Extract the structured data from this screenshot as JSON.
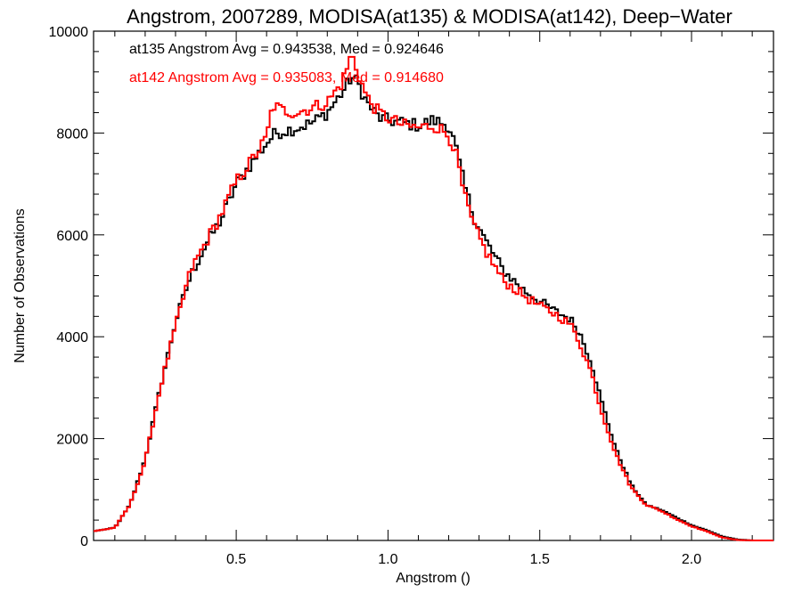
{
  "chart_data": {
    "type": "histogram",
    "title": "Angstrom, 2007289, MODISA(at135) & MODISA(at142), Deep−Water",
    "xlabel": "Angstrom ()",
    "ylabel": "Number of Observations",
    "xlim": [
      0.03,
      2.27
    ],
    "ylim": [
      0,
      10000
    ],
    "x_ticks": [
      0.5,
      1.0,
      1.5,
      2.0
    ],
    "x_tick_labels": [
      "0.5",
      "1.0",
      "1.5",
      "2.0"
    ],
    "y_ticks": [
      0,
      2000,
      4000,
      6000,
      8000,
      10000
    ],
    "y_tick_labels": [
      "0",
      "2000",
      "4000",
      "6000",
      "8000",
      "10000"
    ],
    "grid": false,
    "annotations": [
      {
        "text": "at135 Angstrom Avg = 0.943538, Med = 0.924646",
        "color": "#000000"
      },
      {
        "text": "at142 Angstrom Avg = 0.935083, Med = 0.914680",
        "color": "#ff0000"
      }
    ],
    "series": [
      {
        "color": "#000000",
        "points": [
          [
            0.03,
            180
          ],
          [
            0.1,
            250
          ],
          [
            0.15,
            700
          ],
          [
            0.2,
            1600
          ],
          [
            0.25,
            3000
          ],
          [
            0.3,
            4300
          ],
          [
            0.35,
            5200
          ],
          [
            0.4,
            5800
          ],
          [
            0.45,
            6300
          ],
          [
            0.5,
            7000
          ],
          [
            0.55,
            7400
          ],
          [
            0.6,
            7800
          ],
          [
            0.63,
            8000
          ],
          [
            0.7,
            8100
          ],
          [
            0.75,
            8200
          ],
          [
            0.8,
            8400
          ],
          [
            0.85,
            8800
          ],
          [
            0.88,
            9100
          ],
          [
            0.9,
            9000
          ],
          [
            0.93,
            8600
          ],
          [
            0.97,
            8300
          ],
          [
            1.0,
            8250
          ],
          [
            1.05,
            8200
          ],
          [
            1.1,
            8150
          ],
          [
            1.15,
            8250
          ],
          [
            1.2,
            8150
          ],
          [
            1.22,
            7800
          ],
          [
            1.25,
            7000
          ],
          [
            1.28,
            6400
          ],
          [
            1.32,
            5900
          ],
          [
            1.38,
            5300
          ],
          [
            1.45,
            4900
          ],
          [
            1.5,
            4700
          ],
          [
            1.55,
            4500
          ],
          [
            1.6,
            4350
          ],
          [
            1.63,
            4100
          ],
          [
            1.67,
            3500
          ],
          [
            1.7,
            2800
          ],
          [
            1.75,
            1800
          ],
          [
            1.8,
            1100
          ],
          [
            1.85,
            700
          ],
          [
            1.9,
            600
          ],
          [
            1.95,
            450
          ],
          [
            2.0,
            300
          ],
          [
            2.05,
            200
          ],
          [
            2.1,
            80
          ],
          [
            2.15,
            20
          ],
          [
            2.2,
            0
          ],
          [
            2.27,
            0
          ]
        ]
      },
      {
        "color": "#ff0000",
        "points": [
          [
            0.03,
            180
          ],
          [
            0.1,
            250
          ],
          [
            0.15,
            700
          ],
          [
            0.2,
            1550
          ],
          [
            0.25,
            3000
          ],
          [
            0.3,
            4200
          ],
          [
            0.35,
            5300
          ],
          [
            0.4,
            5850
          ],
          [
            0.45,
            6400
          ],
          [
            0.5,
            7050
          ],
          [
            0.55,
            7450
          ],
          [
            0.6,
            7900
          ],
          [
            0.62,
            8550
          ],
          [
            0.65,
            8450
          ],
          [
            0.7,
            8400
          ],
          [
            0.75,
            8500
          ],
          [
            0.8,
            8600
          ],
          [
            0.85,
            9000
          ],
          [
            0.88,
            9550
          ],
          [
            0.9,
            9200
          ],
          [
            0.93,
            8700
          ],
          [
            0.97,
            8400
          ],
          [
            1.0,
            8300
          ],
          [
            1.05,
            8150
          ],
          [
            1.1,
            8100
          ],
          [
            1.15,
            8150
          ],
          [
            1.18,
            8050
          ],
          [
            1.2,
            7950
          ],
          [
            1.22,
            7700
          ],
          [
            1.25,
            6800
          ],
          [
            1.28,
            6200
          ],
          [
            1.32,
            5700
          ],
          [
            1.38,
            5100
          ],
          [
            1.45,
            4800
          ],
          [
            1.5,
            4600
          ],
          [
            1.55,
            4450
          ],
          [
            1.6,
            4250
          ],
          [
            1.63,
            3900
          ],
          [
            1.67,
            3300
          ],
          [
            1.7,
            2600
          ],
          [
            1.75,
            1700
          ],
          [
            1.8,
            1050
          ],
          [
            1.85,
            700
          ],
          [
            1.9,
            580
          ],
          [
            1.95,
            420
          ],
          [
            2.0,
            280
          ],
          [
            2.05,
            180
          ],
          [
            2.1,
            60
          ],
          [
            2.15,
            10
          ],
          [
            2.2,
            0
          ],
          [
            2.27,
            0
          ]
        ]
      }
    ]
  }
}
